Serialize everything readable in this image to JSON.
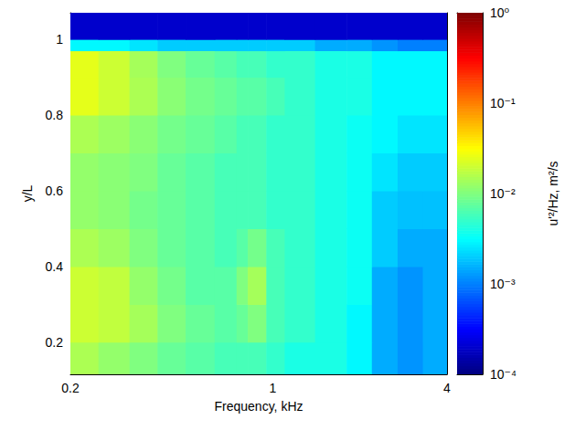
{
  "chart_data": {
    "type": "heatmap",
    "xlabel": "Frequency, kHz",
    "ylabel": "y/L",
    "log": "x",
    "xlim": [
      0.2,
      4
    ],
    "xticks": [
      0.2,
      1,
      4
    ],
    "ylim": [
      0.115,
      1.07
    ],
    "yticks": [
      0.2,
      0.4,
      0.6,
      0.8,
      1
    ],
    "x_edges": [
      0.2,
      0.25,
      0.32,
      0.4,
      0.5,
      0.63,
      0.75,
      0.82,
      0.95,
      1.1,
      1.4,
      1.8,
      2.2,
      2.7,
      3.3,
      4
    ],
    "y_edges": [
      0.115,
      0.2,
      0.3,
      0.4,
      0.5,
      0.6,
      0.7,
      0.8,
      0.9,
      0.97,
      1.0,
      1.07
    ],
    "z": [
      [
        0.015,
        0.012,
        0.01,
        0.008,
        0.007,
        0.006,
        0.006,
        0.006,
        0.005,
        0.004,
        0.004,
        0.003,
        0.0015,
        0.0012,
        0.0015
      ],
      [
        0.02,
        0.018,
        0.014,
        0.01,
        0.008,
        0.007,
        0.008,
        0.01,
        0.006,
        0.005,
        0.004,
        0.003,
        0.0015,
        0.0012,
        0.0015
      ],
      [
        0.02,
        0.018,
        0.012,
        0.009,
        0.007,
        0.007,
        0.01,
        0.014,
        0.006,
        0.005,
        0.004,
        0.0035,
        0.0015,
        0.0012,
        0.0015
      ],
      [
        0.015,
        0.013,
        0.01,
        0.008,
        0.007,
        0.006,
        0.007,
        0.009,
        0.006,
        0.005,
        0.004,
        0.0035,
        0.002,
        0.0015,
        0.0015
      ],
      [
        0.012,
        0.011,
        0.009,
        0.008,
        0.007,
        0.006,
        0.006,
        0.006,
        0.005,
        0.005,
        0.004,
        0.0035,
        0.002,
        0.0018,
        0.0018
      ],
      [
        0.012,
        0.011,
        0.01,
        0.008,
        0.007,
        0.006,
        0.006,
        0.006,
        0.005,
        0.005,
        0.004,
        0.0035,
        0.0025,
        0.002,
        0.002
      ],
      [
        0.015,
        0.013,
        0.011,
        0.009,
        0.008,
        0.007,
        0.006,
        0.006,
        0.005,
        0.005,
        0.004,
        0.0035,
        0.003,
        0.0025,
        0.0025
      ],
      [
        0.025,
        0.02,
        0.015,
        0.011,
        0.009,
        0.008,
        0.007,
        0.007,
        0.006,
        0.005,
        0.004,
        0.004,
        0.003,
        0.003,
        0.003
      ],
      [
        0.025,
        0.02,
        0.014,
        0.01,
        0.008,
        0.007,
        0.006,
        0.006,
        0.005,
        0.005,
        0.004,
        0.004,
        0.003,
        0.003,
        0.003
      ],
      [
        0.003,
        0.003,
        0.0025,
        0.002,
        0.002,
        0.002,
        0.002,
        0.002,
        0.002,
        0.002,
        0.0015,
        0.0015,
        0.0012,
        0.001,
        0.001
      ],
      [
        0.0002,
        0.0002,
        0.0002,
        0.0002,
        0.0002,
        0.0002,
        0.0002,
        0.0002,
        0.0002,
        0.0002,
        0.0002,
        0.0002,
        0.0002,
        0.0002,
        0.0002
      ]
    ],
    "colorbar": {
      "label": "u'²/Hz, m²/s",
      "lim": [
        0.0001,
        1
      ],
      "ticks": [
        {
          "value": 0.0001,
          "label": "10⁻⁴"
        },
        {
          "value": 0.001,
          "label": "10⁻³"
        },
        {
          "value": 0.01,
          "label": "10⁻²"
        },
        {
          "value": 0.1,
          "label": "10⁻¹"
        },
        {
          "value": 1,
          "label": "10⁰"
        }
      ]
    }
  }
}
